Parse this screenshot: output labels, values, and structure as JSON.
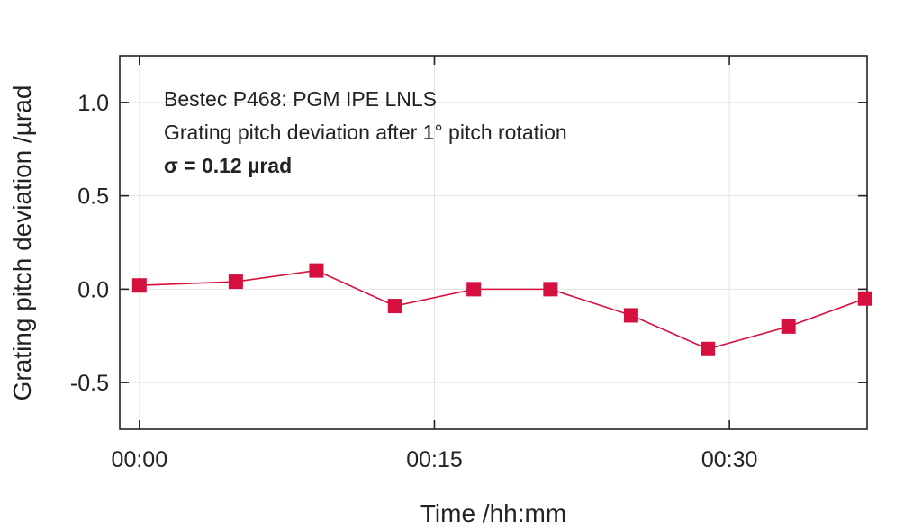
{
  "chart_data": {
    "type": "line",
    "xlabel": "Time /hh:mm",
    "ylabel": "Grating pitch deviation /µrad",
    "x_tick_labels": [
      "00:00",
      "00:15",
      "00:30"
    ],
    "x_tick_minutes": [
      0,
      15,
      30
    ],
    "y_ticks": [
      1.0,
      0.5,
      0.0,
      -0.5
    ],
    "y_tick_labels": [
      "1.0",
      "0.5",
      "0.0",
      "-0.5"
    ],
    "xlim_minutes": [
      -1,
      37
    ],
    "ylim": [
      -0.75,
      1.25
    ],
    "grid": true,
    "annotations": [
      "Bestec P468: PGM IPE LNLS",
      "Grating pitch deviation after 1° pitch rotation",
      "σ = 0.12 µrad"
    ],
    "series": [
      {
        "color": "#d6103e",
        "marker": "square",
        "x_minutes": [
          0.0,
          4.9,
          9.0,
          13.0,
          17.0,
          20.9,
          25.0,
          28.9,
          33.0,
          36.9
        ],
        "values": [
          0.02,
          0.04,
          0.1,
          -0.09,
          0.0,
          0.0,
          -0.14,
          -0.32,
          -0.2,
          -0.05
        ]
      }
    ]
  }
}
